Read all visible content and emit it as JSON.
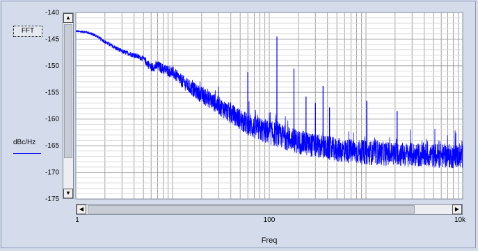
{
  "ui": {
    "fft_button": "FFT",
    "unit_label": "dBc/Hz",
    "legend_color": "#0000ff",
    "up_arrow_icon": "triangle-up",
    "down_arrow_icon": "triangle-down",
    "left_arrow_icon": "triangle-left",
    "right_arrow_icon": "triangle-right"
  },
  "chart_data": {
    "type": "line",
    "xlabel": "Freq",
    "ylabel": "dBc/Hz",
    "x_scale": "log",
    "xlim": [
      1,
      10000
    ],
    "ylim": [
      -175,
      -140
    ],
    "x_ticks": [
      {
        "value": 1,
        "label": "1"
      },
      {
        "value": 100,
        "label": "100"
      },
      {
        "value": 10000,
        "label": "10k"
      }
    ],
    "y_ticks": [
      -140,
      -145,
      -150,
      -155,
      -160,
      -165,
      -170,
      -175
    ],
    "grid": true,
    "series": [
      {
        "color": "#0000ff",
        "noise_floor": [
          [
            1,
            -143.5
          ],
          [
            1.3,
            -143.7
          ],
          [
            1.6,
            -144.3
          ],
          [
            2,
            -145.5
          ],
          [
            2.5,
            -146.5
          ],
          [
            3,
            -147.3
          ],
          [
            4,
            -148
          ],
          [
            5,
            -148.7
          ],
          [
            6,
            -150.3
          ],
          [
            7,
            -150
          ],
          [
            8,
            -150.6
          ],
          [
            10,
            -151.2
          ],
          [
            12,
            -152.6
          ],
          [
            15,
            -154
          ],
          [
            20,
            -155.5
          ],
          [
            25,
            -156.5
          ],
          [
            30,
            -157.5
          ],
          [
            40,
            -159
          ],
          [
            50,
            -160
          ],
          [
            60,
            -161
          ],
          [
            80,
            -162
          ],
          [
            100,
            -162.5
          ],
          [
            150,
            -163.5
          ],
          [
            200,
            -164.3
          ],
          [
            300,
            -165
          ],
          [
            500,
            -165.8
          ],
          [
            1000,
            -166.3
          ],
          [
            3000,
            -166.7
          ],
          [
            10000,
            -167
          ]
        ],
        "spurs": [
          {
            "x": 60,
            "y": -151.2
          },
          {
            "x": 120,
            "y": -144.5
          },
          {
            "x": 180,
            "y": -150.5
          },
          {
            "x": 240,
            "y": -155.8
          },
          {
            "x": 300,
            "y": -157
          },
          {
            "x": 360,
            "y": -153.8
          },
          {
            "x": 420,
            "y": -157.8
          },
          {
            "x": 1020,
            "y": -156.6
          },
          {
            "x": 2100,
            "y": -158.5
          }
        ]
      }
    ]
  }
}
